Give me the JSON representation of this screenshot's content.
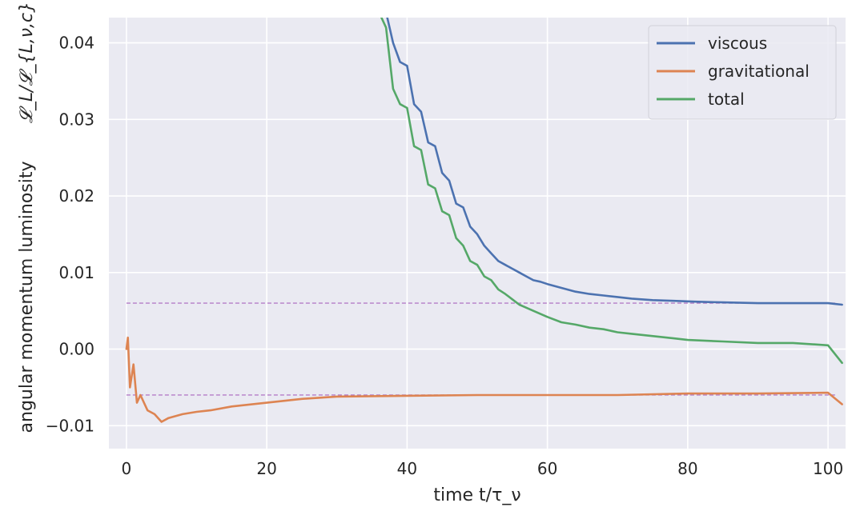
{
  "chart_data": {
    "type": "line",
    "xlabel": "time t/τ_ν",
    "ylabel": "angular momentum luminosity",
    "ylabel_math": "𝓛_L/𝓛_{L,ν,c}",
    "xlim": [
      -2.5,
      102.5
    ],
    "ylim": [
      -0.013,
      0.0433
    ],
    "xticks": [
      0,
      20,
      40,
      60,
      80,
      100
    ],
    "xtick_labels": [
      "0",
      "20",
      "40",
      "60",
      "80",
      "100"
    ],
    "yticks": [
      -0.01,
      0.0,
      0.01,
      0.02,
      0.03,
      0.04
    ],
    "ytick_labels": [
      "−0.01",
      "0.00",
      "0.01",
      "0.02",
      "0.03",
      "0.04"
    ],
    "grid": true,
    "legend": "top-right",
    "reference_lines": [
      {
        "y": 0.006,
        "style": "dashed",
        "color": "#b47cc7"
      },
      {
        "y": -0.006,
        "style": "dashed",
        "color": "#b47cc7"
      }
    ],
    "series": [
      {
        "name": "viscous",
        "color": "#4c72b0",
        "x": [
          36,
          38,
          39,
          40,
          41,
          42,
          43,
          44,
          45,
          46,
          47,
          48,
          49,
          50,
          51,
          52,
          53,
          54,
          55,
          56,
          57,
          58,
          59,
          60,
          62,
          64,
          66,
          68,
          70,
          72,
          75,
          78,
          81,
          85,
          90,
          95,
          100,
          102
        ],
        "y": [
          0.048,
          0.04,
          0.0375,
          0.037,
          0.032,
          0.031,
          0.027,
          0.0265,
          0.023,
          0.022,
          0.019,
          0.0185,
          0.016,
          0.015,
          0.0135,
          0.0125,
          0.0115,
          0.011,
          0.0105,
          0.01,
          0.0095,
          0.009,
          0.0088,
          0.0085,
          0.008,
          0.0075,
          0.0072,
          0.007,
          0.0068,
          0.0066,
          0.0064,
          0.0063,
          0.0062,
          0.0061,
          0.006,
          0.006,
          0.006,
          0.0058
        ]
      },
      {
        "name": "gravitational",
        "color": "#dd8452",
        "x": [
          0,
          0.2,
          0.5,
          1,
          1.5,
          2,
          3,
          4,
          5,
          6,
          8,
          10,
          12,
          15,
          20,
          25,
          30,
          40,
          50,
          60,
          70,
          80,
          90,
          100,
          102
        ],
        "y": [
          0.0,
          0.0015,
          -0.005,
          -0.002,
          -0.007,
          -0.006,
          -0.008,
          -0.0085,
          -0.0095,
          -0.009,
          -0.0085,
          -0.0082,
          -0.008,
          -0.0075,
          -0.007,
          -0.0065,
          -0.0062,
          -0.0061,
          -0.006,
          -0.006,
          -0.006,
          -0.0058,
          -0.0058,
          -0.0057,
          -0.0072
        ]
      },
      {
        "name": "total",
        "color": "#55a868",
        "x": [
          36,
          37,
          38,
          39,
          40,
          41,
          42,
          43,
          44,
          45,
          46,
          47,
          48,
          49,
          50,
          51,
          52,
          53,
          54,
          55,
          56,
          57,
          58,
          60,
          62,
          64,
          66,
          68,
          70,
          72,
          74,
          76,
          78,
          80,
          85,
          90,
          95,
          100,
          102
        ],
        "y": [
          0.044,
          0.042,
          0.034,
          0.032,
          0.0315,
          0.0265,
          0.026,
          0.0215,
          0.021,
          0.018,
          0.0175,
          0.0145,
          0.0135,
          0.0115,
          0.011,
          0.0095,
          0.009,
          0.0078,
          0.0072,
          0.0065,
          0.0058,
          0.0054,
          0.005,
          0.0042,
          0.0035,
          0.0032,
          0.0028,
          0.0026,
          0.0022,
          0.002,
          0.0018,
          0.0016,
          0.0014,
          0.0012,
          0.001,
          0.0008,
          0.0008,
          0.0005,
          -0.0018
        ]
      }
    ]
  }
}
